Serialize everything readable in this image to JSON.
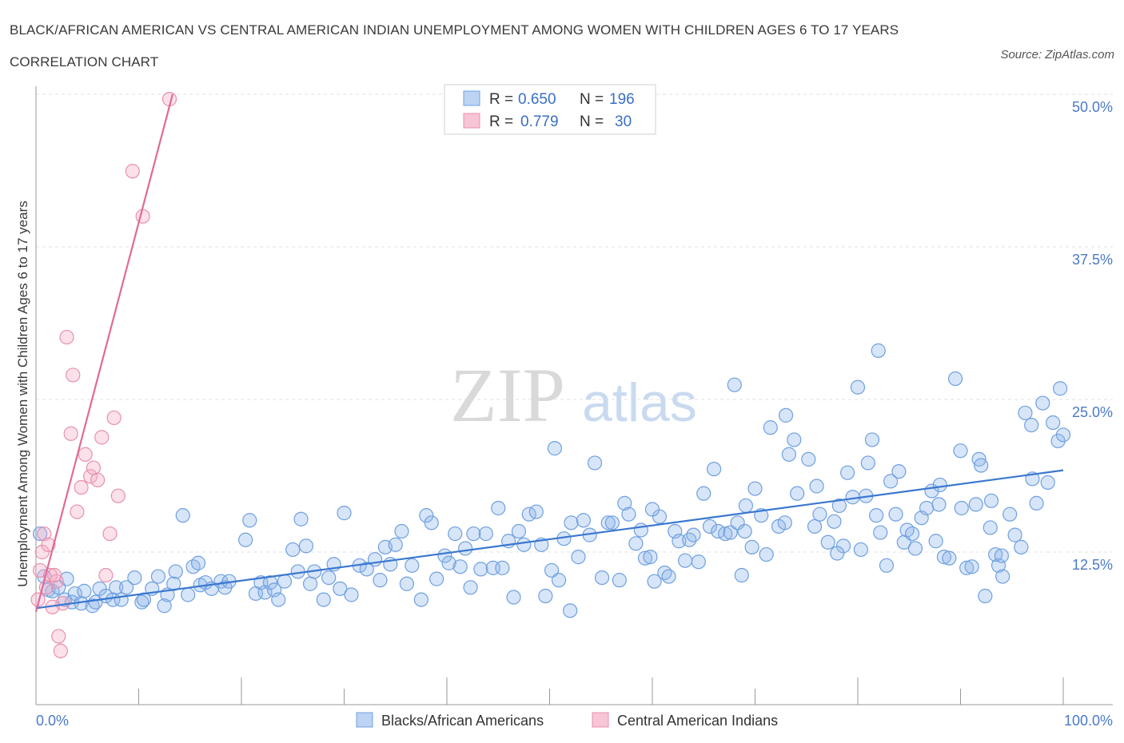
{
  "title": "BLACK/AFRICAN AMERICAN VS CENTRAL AMERICAN INDIAN UNEMPLOYMENT AMONG WOMEN WITH CHILDREN AGES 6 TO 17 YEARS CORRELATION CHART",
  "source": "Source: ZipAtlas.com",
  "watermark": {
    "zip": "ZIP",
    "atlas": "atlas"
  },
  "colors": {
    "blue": "#6fa0e0",
    "blue_fill": "rgba(140,180,235,0.35)",
    "blue_line": "#3a77d0",
    "pink": "#e890ac",
    "pink_fill": "rgba(245,170,195,0.35)",
    "pink_line": "#e06a98",
    "tick_text": "#4a7bc8"
  },
  "legend": {
    "rows": [
      {
        "r_label": "R =",
        "r_value": "0.650",
        "n_label": "N =",
        "n_value": "196"
      },
      {
        "r_label": "R =",
        "r_value": "0.779",
        "n_label": "N =",
        "n_value": "30"
      }
    ]
  },
  "bottom_legend": [
    "Blacks/African Americans",
    "Central American Indians"
  ],
  "chart_data": {
    "type": "scatter",
    "xlabel": "",
    "ylabel": "Unemployment Among Women with Children Ages 6 to 17 years",
    "xlim": [
      0,
      100
    ],
    "ylim": [
      0,
      50
    ],
    "x_tick_labels": [
      "0.0%",
      "100.0%"
    ],
    "y_ticks": [
      12.5,
      25.0,
      37.5,
      50.0
    ],
    "y_tick_labels": [
      "12.5%",
      "25.0%",
      "37.5%",
      "50.0%"
    ],
    "grid": true,
    "legend_position": "top-center",
    "series": [
      {
        "name": "Blacks/African Americans",
        "R": 0.65,
        "N": 196,
        "trend": {
          "x": [
            0,
            100
          ],
          "y": [
            7.9,
            19.2
          ]
        },
        "points": [
          [
            0.4,
            14.0
          ],
          [
            0.8,
            10.5
          ],
          [
            1.2,
            9.4
          ],
          [
            1.6,
            9.3
          ],
          [
            2.2,
            9.6
          ],
          [
            2.8,
            8.6
          ],
          [
            3.0,
            10.3
          ],
          [
            3.5,
            8.4
          ],
          [
            3.8,
            9.1
          ],
          [
            4.4,
            8.3
          ],
          [
            4.7,
            9.3
          ],
          [
            5.5,
            8.1
          ],
          [
            5.8,
            8.4
          ],
          [
            6.2,
            9.5
          ],
          [
            6.8,
            8.9
          ],
          [
            7.5,
            8.6
          ],
          [
            7.8,
            9.6
          ],
          [
            8.3,
            8.6
          ],
          [
            8.8,
            9.6
          ],
          [
            9.6,
            10.4
          ],
          [
            10.3,
            8.4
          ],
          [
            10.5,
            8.6
          ],
          [
            11.3,
            9.5
          ],
          [
            11.9,
            10.5
          ],
          [
            12.5,
            8.1
          ],
          [
            12.8,
            9.0
          ],
          [
            13.4,
            9.9
          ],
          [
            13.6,
            10.9
          ],
          [
            14.3,
            15.5
          ],
          [
            14.8,
            9.0
          ],
          [
            15.3,
            11.3
          ],
          [
            15.8,
            11.6
          ],
          [
            16.0,
            9.8
          ],
          [
            16.5,
            10.0
          ],
          [
            17.1,
            9.5
          ],
          [
            18.0,
            10.1
          ],
          [
            18.4,
            9.6
          ],
          [
            18.8,
            10.1
          ],
          [
            20.4,
            13.5
          ],
          [
            20.8,
            15.1
          ],
          [
            21.4,
            9.1
          ],
          [
            21.9,
            10.0
          ],
          [
            22.3,
            9.2
          ],
          [
            22.8,
            10.0
          ],
          [
            23.2,
            9.4
          ],
          [
            23.6,
            8.6
          ],
          [
            24.2,
            10.1
          ],
          [
            25.0,
            12.7
          ],
          [
            25.5,
            10.9
          ],
          [
            25.8,
            15.2
          ],
          [
            26.3,
            13.0
          ],
          [
            26.7,
            9.9
          ],
          [
            27.1,
            10.9
          ],
          [
            28.0,
            8.6
          ],
          [
            28.5,
            10.4
          ],
          [
            29.0,
            11.5
          ],
          [
            29.6,
            9.5
          ],
          [
            30.0,
            15.7
          ],
          [
            30.7,
            9.0
          ],
          [
            31.5,
            11.4
          ],
          [
            32.2,
            11.1
          ],
          [
            33.0,
            11.9
          ],
          [
            33.5,
            10.2
          ],
          [
            34.0,
            12.9
          ],
          [
            34.5,
            11.5
          ],
          [
            35.0,
            13.1
          ],
          [
            35.6,
            14.2
          ],
          [
            36.1,
            9.9
          ],
          [
            36.6,
            11.4
          ],
          [
            37.5,
            8.6
          ],
          [
            38.0,
            15.5
          ],
          [
            38.5,
            14.9
          ],
          [
            39.0,
            10.3
          ],
          [
            39.8,
            12.2
          ],
          [
            40.2,
            11.6
          ],
          [
            40.8,
            14.0
          ],
          [
            41.3,
            11.3
          ],
          [
            41.8,
            12.8
          ],
          [
            42.3,
            9.6
          ],
          [
            42.6,
            14.0
          ],
          [
            43.3,
            11.1
          ],
          [
            43.8,
            14.0
          ],
          [
            44.5,
            11.2
          ],
          [
            45.0,
            16.1
          ],
          [
            45.4,
            11.2
          ],
          [
            46.0,
            13.4
          ],
          [
            46.5,
            8.8
          ],
          [
            47.0,
            14.2
          ],
          [
            47.5,
            13.1
          ],
          [
            48.0,
            15.6
          ],
          [
            48.7,
            15.8
          ],
          [
            49.2,
            13.1
          ],
          [
            49.6,
            8.9
          ],
          [
            50.5,
            21.0
          ],
          [
            50.2,
            11.0
          ],
          [
            50.9,
            10.2
          ],
          [
            51.4,
            13.6
          ],
          [
            52.1,
            14.9
          ],
          [
            52.8,
            12.1
          ],
          [
            53.3,
            15.1
          ],
          [
            53.9,
            13.9
          ],
          [
            54.4,
            19.8
          ],
          [
            55.1,
            10.4
          ],
          [
            55.7,
            14.9
          ],
          [
            56.1,
            14.9
          ],
          [
            56.8,
            10.2
          ],
          [
            57.3,
            16.5
          ],
          [
            57.7,
            15.6
          ],
          [
            58.4,
            13.2
          ],
          [
            58.9,
            14.3
          ],
          [
            59.3,
            12.0
          ],
          [
            59.8,
            12.1
          ],
          [
            60.2,
            10.1
          ],
          [
            60.7,
            15.4
          ],
          [
            61.2,
            10.8
          ],
          [
            61.6,
            10.5
          ],
          [
            62.2,
            14.2
          ],
          [
            62.6,
            13.4
          ],
          [
            63.2,
            11.8
          ],
          [
            63.6,
            13.5
          ],
          [
            64.0,
            13.9
          ],
          [
            64.5,
            11.7
          ],
          [
            65.0,
            17.3
          ],
          [
            65.6,
            14.6
          ],
          [
            66.4,
            14.2
          ],
          [
            67.1,
            14.0
          ],
          [
            67.6,
            14.1
          ],
          [
            68.3,
            14.9
          ],
          [
            68.7,
            10.6
          ],
          [
            69.1,
            16.3
          ],
          [
            69.7,
            12.9
          ],
          [
            70.0,
            17.7
          ],
          [
            70.6,
            15.5
          ],
          [
            71.1,
            12.3
          ],
          [
            71.5,
            22.7
          ],
          [
            72.3,
            14.6
          ],
          [
            72.9,
            14.9
          ],
          [
            73.3,
            20.5
          ],
          [
            73.8,
            21.7
          ],
          [
            74.1,
            17.3
          ],
          [
            75.2,
            20.1
          ],
          [
            75.8,
            14.6
          ],
          [
            76.3,
            15.6
          ],
          [
            77.1,
            13.3
          ],
          [
            77.7,
            15.0
          ],
          [
            78.2,
            16.3
          ],
          [
            78.6,
            13.0
          ],
          [
            79.0,
            19.0
          ],
          [
            79.5,
            17.0
          ],
          [
            80.0,
            26.0
          ],
          [
            80.3,
            12.7
          ],
          [
            80.8,
            17.1
          ],
          [
            81.4,
            21.7
          ],
          [
            81.8,
            15.5
          ],
          [
            82.2,
            14.1
          ],
          [
            82.8,
            11.4
          ],
          [
            83.2,
            18.3
          ],
          [
            83.7,
            15.6
          ],
          [
            84.0,
            19.1
          ],
          [
            84.5,
            13.3
          ],
          [
            84.8,
            14.3
          ],
          [
            85.3,
            14.0
          ],
          [
            85.6,
            12.8
          ],
          [
            86.2,
            15.3
          ],
          [
            86.7,
            16.1
          ],
          [
            87.2,
            17.5
          ],
          [
            87.6,
            13.4
          ],
          [
            87.9,
            16.4
          ],
          [
            88.4,
            12.1
          ],
          [
            88.9,
            12.0
          ],
          [
            89.5,
            26.7
          ],
          [
            90.1,
            16.1
          ],
          [
            90.6,
            11.2
          ],
          [
            91.1,
            11.3
          ],
          [
            91.5,
            16.4
          ],
          [
            92.4,
            8.9
          ],
          [
            92.9,
            14.5
          ],
          [
            93.4,
            12.3
          ],
          [
            93.7,
            11.4
          ],
          [
            94.1,
            10.5
          ],
          [
            94.8,
            15.6
          ],
          [
            95.3,
            13.9
          ],
          [
            95.9,
            12.9
          ],
          [
            96.3,
            23.9
          ],
          [
            96.9,
            22.9
          ],
          [
            97.4,
            16.5
          ],
          [
            98.0,
            24.7
          ],
          [
            98.5,
            18.2
          ],
          [
            99.0,
            23.1
          ],
          [
            99.5,
            21.6
          ],
          [
            100.0,
            22.1
          ],
          [
            99.7,
            25.9
          ],
          [
            66.0,
            19.3
          ],
          [
            68.0,
            26.2
          ],
          [
            73.0,
            23.7
          ],
          [
            76.0,
            17.9
          ],
          [
            90.0,
            20.8
          ],
          [
            91.8,
            20.1
          ],
          [
            93.0,
            16.7
          ],
          [
            92.0,
            19.6
          ],
          [
            78.0,
            12.4
          ],
          [
            60.0,
            16.0
          ],
          [
            52.0,
            7.7
          ],
          [
            81.0,
            19.8
          ],
          [
            69.0,
            14.2
          ],
          [
            97.0,
            18.5
          ],
          [
            94.0,
            12.2
          ],
          [
            88.0,
            18.0
          ],
          [
            82.0,
            29.0
          ]
        ]
      },
      {
        "name": "Central American Indians",
        "R": 0.779,
        "N": 30,
        "trend": {
          "x": [
            0,
            13.3
          ],
          "y": [
            7.6,
            50.0
          ]
        },
        "points": [
          [
            0.2,
            8.6
          ],
          [
            0.4,
            11.0
          ],
          [
            0.6,
            12.5
          ],
          [
            0.8,
            14.0
          ],
          [
            1.0,
            9.6
          ],
          [
            1.2,
            13.1
          ],
          [
            1.4,
            10.6
          ],
          [
            1.6,
            8.0
          ],
          [
            2.0,
            10.1
          ],
          [
            2.2,
            5.6
          ],
          [
            2.6,
            8.3
          ],
          [
            3.0,
            30.1
          ],
          [
            3.4,
            22.2
          ],
          [
            3.6,
            27.0
          ],
          [
            4.0,
            15.8
          ],
          [
            4.4,
            17.8
          ],
          [
            4.8,
            20.5
          ],
          [
            5.3,
            18.7
          ],
          [
            5.6,
            19.4
          ],
          [
            6.0,
            18.4
          ],
          [
            6.4,
            21.9
          ],
          [
            6.8,
            10.6
          ],
          [
            7.2,
            14.0
          ],
          [
            7.6,
            23.5
          ],
          [
            8.0,
            17.1
          ],
          [
            9.4,
            43.7
          ],
          [
            10.4,
            40.0
          ],
          [
            13.0,
            49.6
          ],
          [
            1.8,
            10.6
          ],
          [
            2.4,
            4.4
          ]
        ]
      }
    ]
  }
}
